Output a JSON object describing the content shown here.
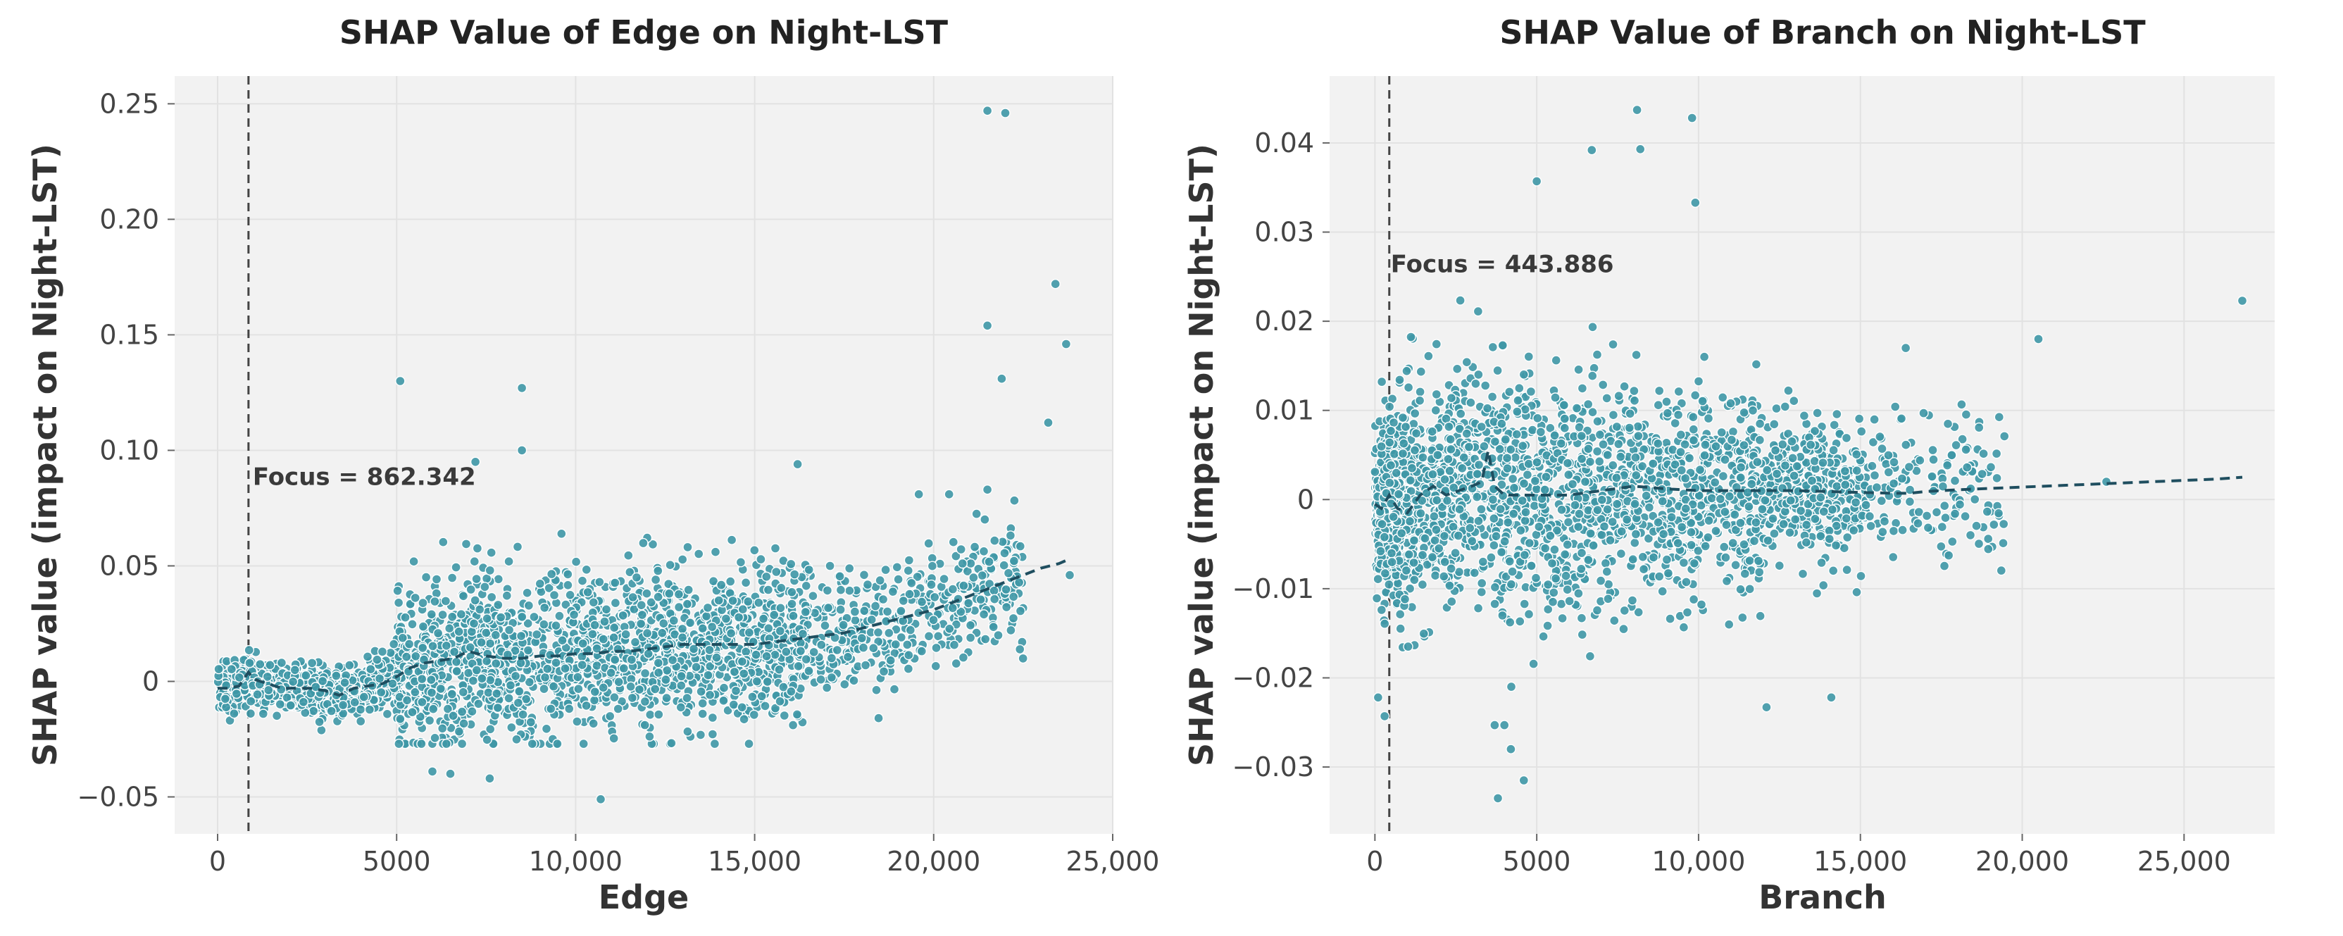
{
  "chart_data": [
    {
      "type": "scatter",
      "title": "SHAP Value of Edge on Night-LST",
      "xlabel": "Edge",
      "ylabel": "SHAP value (impact on Night-LST)",
      "xlim": [
        -1200,
        25000
      ],
      "ylim": [
        -0.066,
        0.262
      ],
      "xticks": [
        0,
        5000,
        10000,
        15000,
        20000,
        25000
      ],
      "xtick_labels": [
        "0",
        "5000",
        "10,000",
        "15,000",
        "20,000",
        "25,000"
      ],
      "yticks": [
        -0.05,
        0,
        0.05,
        0.1,
        0.15,
        0.2,
        0.25
      ],
      "ytick_labels": [
        "−0.05",
        "0",
        "0.05",
        "0.10",
        "0.15",
        "0.20",
        "0.25"
      ],
      "grid": true,
      "focus": {
        "x": 862.342,
        "label": "Focus = 862.342"
      },
      "trend": {
        "x": [
          0,
          300,
          600,
          862,
          1000,
          1400,
          1800,
          2200,
          2600,
          3000,
          3400,
          3800,
          4200,
          4600,
          5000,
          5400,
          5800,
          6200,
          6600,
          7000,
          7500,
          8000,
          8500,
          9000,
          9500,
          10000,
          10500,
          11000,
          11500,
          12000,
          12500,
          13000,
          13500,
          14000,
          14500,
          15000,
          15500,
          16000,
          16500,
          17000,
          17500,
          18000,
          18500,
          19000,
          19500,
          20000,
          20500,
          21000,
          21500,
          22000,
          22500,
          23000,
          23500,
          23800
        ],
        "y": [
          -0.003,
          -0.003,
          -0.002,
          0.004,
          0.001,
          -0.001,
          -0.003,
          -0.003,
          -0.003,
          -0.004,
          -0.006,
          -0.003,
          -0.002,
          -0.001,
          0.002,
          0.006,
          0.008,
          0.009,
          0.01,
          0.013,
          0.011,
          0.01,
          0.01,
          0.011,
          0.011,
          0.012,
          0.012,
          0.013,
          0.013,
          0.014,
          0.015,
          0.016,
          0.016,
          0.016,
          0.016,
          0.016,
          0.017,
          0.018,
          0.019,
          0.02,
          0.021,
          0.023,
          0.025,
          0.027,
          0.029,
          0.031,
          0.034,
          0.037,
          0.04,
          0.043,
          0.046,
          0.049,
          0.051,
          0.053
        ]
      },
      "notable_points": [
        {
          "x": 21500,
          "y": 0.247
        },
        {
          "x": 22000,
          "y": 0.246
        },
        {
          "x": 23400,
          "y": 0.172
        },
        {
          "x": 21500,
          "y": 0.154
        },
        {
          "x": 23700,
          "y": 0.146
        },
        {
          "x": 21900,
          "y": 0.131
        },
        {
          "x": 5100,
          "y": 0.13
        },
        {
          "x": 8500,
          "y": 0.127
        },
        {
          "x": 23200,
          "y": 0.112
        },
        {
          "x": 8500,
          "y": 0.1
        },
        {
          "x": 7200,
          "y": 0.095
        },
        {
          "x": 16200,
          "y": 0.094
        },
        {
          "x": 21500,
          "y": 0.083
        },
        {
          "x": 6000,
          "y": -0.039
        },
        {
          "x": 6500,
          "y": -0.04
        },
        {
          "x": 7600,
          "y": -0.042
        },
        {
          "x": 10700,
          "y": -0.051
        },
        {
          "x": 23800,
          "y": 0.046
        }
      ],
      "cloud": {
        "count": 2800,
        "seed": 17
      }
    },
    {
      "type": "scatter",
      "title": "SHAP Value of Branch on Night-LST",
      "xlabel": "Branch",
      "ylabel": "SHAP value (impact on Night-LST)",
      "xlim": [
        -1400,
        27800
      ],
      "ylim": [
        -0.0375,
        0.0475
      ],
      "xticks": [
        0,
        5000,
        10000,
        15000,
        20000,
        25000
      ],
      "xtick_labels": [
        "0",
        "5000",
        "10,000",
        "15,000",
        "20,000",
        "25,000"
      ],
      "yticks": [
        -0.03,
        -0.02,
        -0.01,
        0,
        0.01,
        0.02,
        0.03,
        0.04
      ],
      "ytick_labels": [
        "−0.03",
        "−0.02",
        "−0.01",
        "0",
        "0.01",
        "0.02",
        "0.03",
        "0.04"
      ],
      "grid": true,
      "focus": {
        "x": 443.886,
        "label": "Focus = 443.886"
      },
      "trend": {
        "x": [
          0,
          200,
          443,
          700,
          1000,
          1400,
          1800,
          2200,
          2600,
          3000,
          3300,
          3500,
          3700,
          4000,
          5000,
          6000,
          7000,
          8000,
          9000,
          10000,
          11000,
          12000,
          13000,
          14000,
          15000,
          16000,
          16500,
          17000,
          18000,
          20000,
          22000,
          24000,
          26000,
          26800
        ],
        "y": [
          -0.0005,
          -0.001,
          0.0005,
          -0.001,
          -0.0015,
          0.0005,
          0.0015,
          0.0005,
          0.001,
          0.0015,
          0.002,
          0.0055,
          0.0015,
          0.0005,
          0.0005,
          0.0005,
          0.001,
          0.0015,
          0.0012,
          0.001,
          0.001,
          0.001,
          0.001,
          0.0009,
          0.0008,
          0.0007,
          0.0007,
          0.0009,
          0.0011,
          0.0014,
          0.0017,
          0.002,
          0.0023,
          0.0025
        ]
      },
      "notable_points": [
        {
          "x": 8100,
          "y": 0.0437
        },
        {
          "x": 9800,
          "y": 0.0428
        },
        {
          "x": 6700,
          "y": 0.0392
        },
        {
          "x": 8200,
          "y": 0.0393
        },
        {
          "x": 5000,
          "y": 0.0357
        },
        {
          "x": 9900,
          "y": 0.0333
        },
        {
          "x": 26800,
          "y": 0.0223
        },
        {
          "x": 20500,
          "y": 0.018
        },
        {
          "x": 3800,
          "y": -0.0335
        },
        {
          "x": 4600,
          "y": -0.0315
        },
        {
          "x": 4200,
          "y": -0.028
        },
        {
          "x": 3700,
          "y": -0.0253
        },
        {
          "x": 4000,
          "y": -0.0253
        },
        {
          "x": 14100,
          "y": -0.0222
        },
        {
          "x": 12100,
          "y": -0.0233
        },
        {
          "x": 100,
          "y": -0.0222
        },
        {
          "x": 300,
          "y": -0.0243
        },
        {
          "x": 18400,
          "y": -0.004
        },
        {
          "x": 22600,
          "y": 0.002
        },
        {
          "x": 16400,
          "y": 0.017
        }
      ],
      "cloud": {
        "count": 2800,
        "seed": 41
      }
    }
  ]
}
